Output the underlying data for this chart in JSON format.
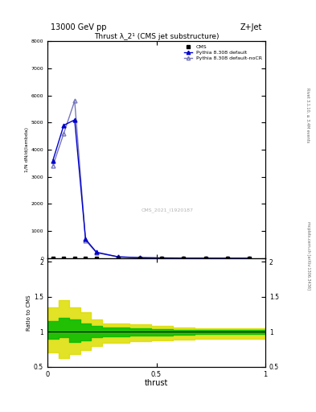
{
  "title_top": "13000 GeV pp",
  "title_right": "Z+Jet",
  "plot_title": "Thrust λ_2¹ (CMS jet substructure)",
  "watermark": "CMS_2021_I1920187",
  "right_label_top": "Rivet 3.1.10, ≥ 3.4M events",
  "right_label_bottom": "mcplots.cern.ch [arXiv:1306.3436]",
  "xlabel": "thrust",
  "ylabel_main": "1/N dN/d(lambda)",
  "ylabel_ratio": "Ratio to CMS",
  "xlim": [
    0,
    1
  ],
  "ylim_main": [
    0,
    8000
  ],
  "ylim_ratio": [
    0.5,
    2.05
  ],
  "ratio_yticks": [
    0.5,
    1.0,
    1.5,
    2.0
  ],
  "cms_x": [
    0.025,
    0.075,
    0.125,
    0.175,
    0.225,
    0.325,
    0.425,
    0.525,
    0.625,
    0.725,
    0.825,
    0.925
  ],
  "cms_y": [
    0.5,
    0.5,
    0.5,
    0.5,
    0.5,
    0.5,
    0.5,
    0.5,
    0.5,
    0.5,
    0.5,
    0.5
  ],
  "pythia_default_x": [
    0.025,
    0.075,
    0.125,
    0.175,
    0.225,
    0.325,
    0.425,
    0.525,
    0.625,
    0.725,
    0.825,
    0.925
  ],
  "pythia_default_y": [
    3600,
    4900,
    5100,
    700,
    220,
    50,
    20,
    10,
    5,
    2,
    1,
    0.5
  ],
  "pythia_nocr_x": [
    0.025,
    0.075,
    0.125,
    0.175,
    0.225,
    0.325,
    0.425,
    0.525,
    0.625,
    0.725,
    0.825,
    0.925
  ],
  "pythia_nocr_y": [
    3400,
    4600,
    5800,
    660,
    200,
    45,
    18,
    8,
    4,
    1.5,
    0.8,
    0.3
  ],
  "green_band_upper": [
    1.15,
    1.2,
    1.18,
    1.12,
    1.08,
    1.06,
    1.05,
    1.04,
    1.03,
    1.02,
    1.02,
    1.02
  ],
  "green_band_lower": [
    0.9,
    0.92,
    0.85,
    0.88,
    0.92,
    0.93,
    0.94,
    0.95,
    0.96,
    0.97,
    0.97,
    0.97
  ],
  "yellow_band_upper": [
    1.35,
    1.45,
    1.35,
    1.28,
    1.18,
    1.12,
    1.1,
    1.08,
    1.06,
    1.05,
    1.05,
    1.05
  ],
  "yellow_band_lower": [
    0.7,
    0.62,
    0.68,
    0.74,
    0.8,
    0.84,
    0.86,
    0.87,
    0.89,
    0.9,
    0.9,
    0.9
  ],
  "color_default": "#0000cc",
  "color_nocr": "#7777bb",
  "color_cms": "#000000",
  "color_green": "#00bb00",
  "color_yellow": "#dddd00",
  "bg_color": "#ffffff"
}
